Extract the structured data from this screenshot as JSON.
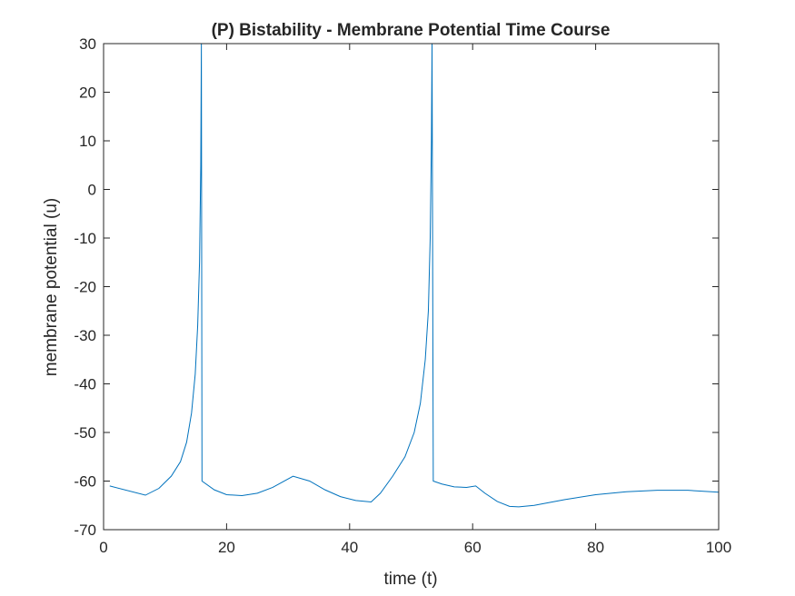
{
  "chart_data": {
    "type": "line",
    "title": "(P) Bistability - Membrane Potential Time Course",
    "xlabel": "time (t)",
    "ylabel": "membrane potential (u)",
    "xlim": [
      0,
      100
    ],
    "ylim": [
      -70,
      30
    ],
    "xticks": [
      0,
      20,
      40,
      60,
      80,
      100
    ],
    "yticks": [
      -70,
      -60,
      -50,
      -40,
      -30,
      -20,
      -10,
      0,
      10,
      20,
      30
    ],
    "xtick_labels": [
      "0",
      "20",
      "40",
      "60",
      "80",
      "100"
    ],
    "ytick_labels": [
      "-70",
      "-60",
      "-50",
      "-40",
      "-30",
      "-20",
      "-10",
      "0",
      "10",
      "20",
      "30"
    ],
    "grid": false,
    "line_color": "#0072BD",
    "series": [
      {
        "x": [
          1,
          6.8,
          9,
          11,
          12.5,
          13.5,
          14.3,
          14.9,
          15.3,
          15.6,
          15.8,
          15.9,
          16.0,
          18,
          20,
          22.5,
          25,
          27.5,
          30.8,
          33.5,
          36,
          38.5,
          41,
          43.5,
          45,
          47,
          49,
          50.5,
          51.5,
          52.3,
          52.8,
          53.1,
          53.3,
          53.4,
          53.6,
          55,
          57,
          59,
          60.5,
          62,
          64,
          66,
          67.5,
          70,
          75,
          80,
          85,
          90,
          95,
          100
        ],
        "y": [
          -61,
          -62.9,
          -61.5,
          -59,
          -56,
          -52,
          -46,
          -38,
          -28,
          -15,
          5,
          30,
          -60,
          -61.8,
          -62.8,
          -63,
          -62.5,
          -61.3,
          -59,
          -60,
          -61.8,
          -63.2,
          -64,
          -64.3,
          -62.5,
          -59,
          -55,
          -50,
          -44,
          -35,
          -25,
          -10,
          10,
          30,
          -60,
          -60.6,
          -61.2,
          -61.3,
          -61,
          -62.5,
          -64.2,
          -65.2,
          -65.3,
          -65,
          -63.8,
          -62.8,
          -62.2,
          -61.9,
          -61.9,
          -62.3
        ]
      }
    ]
  }
}
